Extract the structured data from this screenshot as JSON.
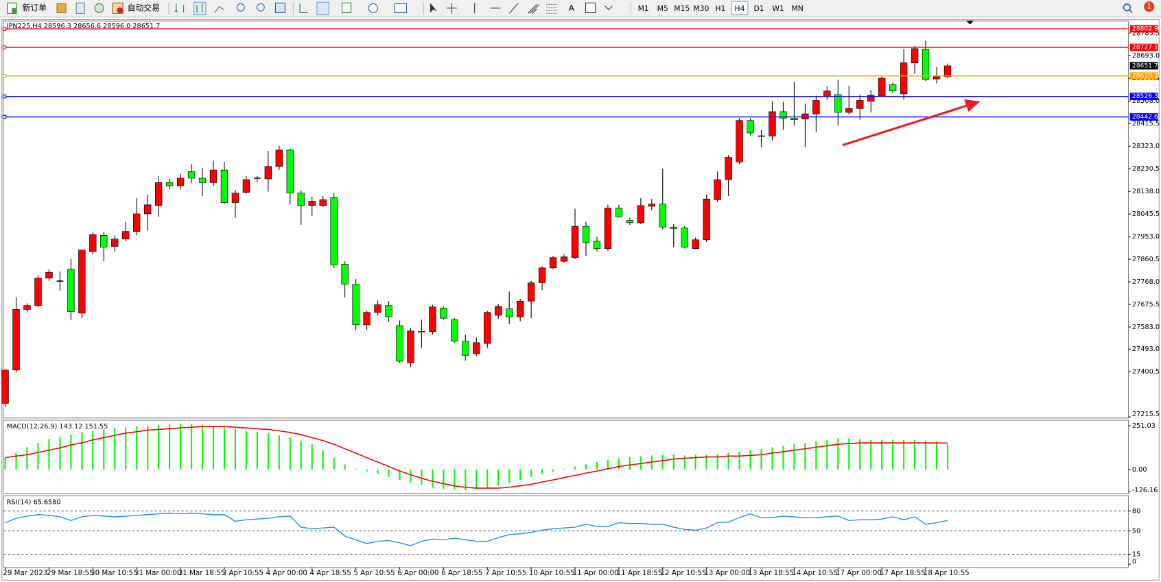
{
  "toolbar": {
    "new_order": "新订单",
    "auto_trading": "自动交易",
    "timeframes": [
      "M1",
      "M5",
      "M15",
      "M30",
      "H1",
      "H4",
      "D1",
      "W1",
      "MN"
    ],
    "active_timeframe": "H4",
    "notifications": 1
  },
  "chart_data": [
    {
      "type": "candlestick",
      "title": "JPN225,H4 28596.3 28656.6 28596.0 28651.7",
      "categories": [
        "29 Mar 2023",
        null,
        null,
        null,
        "29 Mar 18:55",
        null,
        null,
        null,
        "30 Mar 10:55",
        null,
        null,
        null,
        "31 Mar 00:00",
        null,
        null,
        null,
        "31 Mar 18:55",
        null,
        null,
        null,
        "3 Apr 10:55",
        null,
        null,
        null,
        "4 Apr 00:00",
        null,
        null,
        null,
        "4 Apr 18:55",
        null,
        null,
        null,
        "5 Apr 10:55",
        null,
        null,
        null,
        "6 Apr 00:00",
        null,
        null,
        null,
        "6 Apr 18:55",
        null,
        null,
        null,
        "7 Apr 10:55",
        null,
        null,
        null,
        "10 Apr 10:55",
        null,
        null,
        null,
        "11 Apr 00:00",
        null,
        null,
        null,
        "11 Apr 18:55",
        null,
        null,
        null,
        "12 Apr 10:55",
        null,
        null,
        null,
        "13 Apr 00:00",
        null,
        null,
        null,
        "13 Apr 18:55",
        null,
        null,
        null,
        "14 Apr 10:55",
        null,
        null,
        null,
        "17 Apr 00:00",
        null,
        null,
        null,
        "17 Apr 18:55",
        null,
        null,
        null,
        "18 Apr 10:55",
        null,
        null
      ],
      "open": [
        27271,
        27407,
        27655,
        27671,
        27783,
        27771,
        27819,
        27640,
        27892,
        27958,
        27913,
        27943,
        27974,
        28046,
        28080,
        28174,
        28161,
        28219,
        28192,
        28174,
        28225,
        28092,
        28134,
        28192,
        28189,
        28240,
        28307,
        28131,
        28080,
        28080,
        28113,
        27840,
        27758,
        27592,
        27643,
        27671,
        27589,
        27437,
        27564,
        27564,
        27661,
        27613,
        27525,
        27474,
        27516,
        27631,
        27658,
        27625,
        27689,
        27764,
        27825,
        27852,
        27867,
        27995,
        27934,
        27904,
        28070,
        28019,
        28010,
        28077,
        28086,
        27992,
        27989,
        27904,
        27940,
        28104,
        28186,
        28258,
        28428,
        28364,
        28364,
        28464,
        28437,
        28434,
        28455,
        28525,
        28534,
        28461,
        28477,
        28507,
        28528,
        28574,
        28537,
        28664,
        28719,
        28598,
        28607
      ],
      "high": [
        27407,
        27704,
        27680,
        27795,
        27819,
        27810,
        27861,
        27898,
        27968,
        27971,
        27958,
        28013,
        28110,
        28125,
        28201,
        28189,
        28210,
        28249,
        28234,
        28264,
        28258,
        28143,
        28201,
        28201,
        28304,
        28325,
        28313,
        28143,
        28116,
        28119,
        28131,
        27852,
        27780,
        27649,
        27692,
        27689,
        27610,
        27580,
        27613,
        27674,
        27667,
        27619,
        27552,
        27540,
        27649,
        27677,
        27728,
        27698,
        27771,
        27831,
        27874,
        27880,
        28067,
        28013,
        27952,
        28083,
        28083,
        28031,
        28110,
        28107,
        28231,
        28004,
        27995,
        27949,
        28125,
        28219,
        28286,
        28437,
        28437,
        28389,
        28507,
        28504,
        28586,
        28498,
        28528,
        28567,
        28595,
        28570,
        28534,
        28552,
        28607,
        28583,
        28719,
        28734,
        28755,
        28646,
        28661
      ],
      "low": [
        27255,
        27398,
        27643,
        27665,
        27771,
        27731,
        27613,
        27619,
        27880,
        27852,
        27892,
        27934,
        27958,
        27977,
        28034,
        28146,
        28146,
        28171,
        28119,
        28161,
        28086,
        28031,
        28128,
        28177,
        28137,
        28225,
        28086,
        28001,
        28037,
        28074,
        27825,
        27704,
        27570,
        27570,
        27631,
        27604,
        27437,
        27419,
        27498,
        27552,
        27613,
        27519,
        27446,
        27464,
        27498,
        27616,
        27595,
        27607,
        27619,
        27734,
        27819,
        27846,
        27861,
        27874,
        27892,
        27895,
        28031,
        28001,
        28004,
        28061,
        27983,
        27910,
        27904,
        27901,
        27931,
        28095,
        28119,
        28249,
        28367,
        28319,
        28346,
        28389,
        28407,
        28319,
        28380,
        28513,
        28407,
        28452,
        28431,
        28461,
        28528,
        28540,
        28513,
        28619,
        28589,
        28580,
        28601
      ],
      "close": [
        27407,
        27655,
        27671,
        27783,
        27807,
        27771,
        27646,
        27898,
        27961,
        27910,
        27943,
        27974,
        28046,
        28083,
        28174,
        28161,
        28192,
        28192,
        28174,
        28225,
        28092,
        28131,
        28186,
        28192,
        28240,
        28307,
        28131,
        28080,
        28098,
        28104,
        27837,
        27758,
        27592,
        27643,
        27674,
        27625,
        27443,
        27567,
        27564,
        27665,
        27619,
        27525,
        27467,
        27519,
        27643,
        27667,
        27625,
        27689,
        27764,
        27825,
        27867,
        27870,
        27995,
        27928,
        27904,
        28070,
        28034,
        28010,
        28080,
        28086,
        27992,
        27986,
        27910,
        27940,
        28107,
        28186,
        28277,
        28428,
        28377,
        28364,
        28464,
        28437,
        28431,
        28455,
        28510,
        28549,
        28461,
        28477,
        28510,
        28531,
        28601,
        28549,
        28664,
        28722,
        28595,
        28607,
        28651.7
      ],
      "up_color": "#ff0000",
      "down_color": "#00ff00",
      "wick_color": "#000000",
      "ylim": [
        27215.5,
        28830
      ],
      "yticks": [
        28785.5,
        {
          "value": 28693,
          "label": "28693.0"
        },
        28600.5,
        {
          "value": 28508,
          "label": "28508.0"
        },
        28415.5,
        {
          "value": 28323,
          "label": "28323.0"
        },
        28230.5,
        {
          "value": 28138,
          "label": "28138.0"
        },
        28045.5,
        {
          "value": 27953,
          "label": "27953.0"
        },
        27860.5,
        {
          "value": 27768,
          "label": "27768.0"
        },
        27675.5,
        {
          "value": 27583,
          "label": "27583.0"
        },
        {
          "value": 27493,
          "label": "27493.0"
        },
        27400.5,
        27215.5
      ],
      "hlines": [
        {
          "value": 28802.9,
          "color": "#ff0000"
        },
        {
          "value": 28727.1,
          "color": "#ff0000"
        },
        {
          "value": 28610.3,
          "color": "#ffa500"
        },
        {
          "value": 28526.3,
          "color": "#0000ff"
        },
        {
          "value": 28442.6,
          "color": "#0000ff"
        }
      ],
      "last_price": 28651.7
    },
    {
      "type": "macd",
      "title": "MACD(12,26,9) 143.12 151.55",
      "histogram": {
        "color": "#00ff00",
        "values": [
          68,
          94,
          128,
          153,
          175,
          187,
          200,
          213,
          222,
          230,
          239,
          243,
          247,
          251,
          256,
          260,
          264,
          260,
          256,
          251,
          243,
          234,
          222,
          217,
          209,
          196,
          187,
          166,
          145,
          111,
          68,
          30,
          4,
          -13,
          -26,
          -43,
          -60,
          -77,
          -89,
          -102,
          -111,
          -115,
          -119,
          -115,
          -107,
          -94,
          -77,
          -60,
          -43,
          -26,
          -13,
          4,
          17,
          30,
          43,
          55,
          64,
          72,
          77,
          81,
          85,
          85,
          81,
          85,
          85,
          89,
          94,
          102,
          111,
          119,
          128,
          136,
          145,
          153,
          162,
          170,
          179,
          179,
          175,
          170,
          170,
          170,
          170,
          170,
          166,
          160,
          143.12
        ]
      },
      "signal": {
        "color": "#ff0000",
        "values": [
          68,
          77,
          85,
          98,
          111,
          124,
          141,
          153,
          170,
          183,
          196,
          209,
          217,
          226,
          230,
          234,
          239,
          243,
          247,
          247,
          247,
          243,
          239,
          234,
          230,
          222,
          213,
          200,
          183,
          166,
          145,
          119,
          94,
          68,
          43,
          17,
          -9,
          -30,
          -51,
          -68,
          -81,
          -94,
          -102,
          -107,
          -107,
          -107,
          -102,
          -94,
          -85,
          -72,
          -60,
          -47,
          -34,
          -21,
          -9,
          4,
          17,
          26,
          34,
          43,
          51,
          60,
          64,
          68,
          72,
          72,
          77,
          77,
          81,
          85,
          94,
          102,
          111,
          119,
          128,
          136,
          145,
          149,
          153,
          153,
          153,
          153,
          153,
          153,
          153,
          153,
          151.55
        ]
      },
      "ylim": [
        -136,
        281
      ],
      "yticks": [
        251.03,
        {
          "value": 0,
          "label": "0.00"
        },
        -126.16
      ]
    },
    {
      "type": "line",
      "title": "RSI(14) 65.6580",
      "color": "#1e90ff",
      "values": [
        62.2,
        68.9,
        72.2,
        74.4,
        73.3,
        71.1,
        65.6,
        71.1,
        73.3,
        72.2,
        71.1,
        72.2,
        73.3,
        74.4,
        75.6,
        76.7,
        75.6,
        76.7,
        75.6,
        74.4,
        74.4,
        64.4,
        66.7,
        67.8,
        68.9,
        71.1,
        72.2,
        55.6,
        53.3,
        54.4,
        55.6,
        42.2,
        36.7,
        31.1,
        34.4,
        35.6,
        32.2,
        27.8,
        34.4,
        37.8,
        36.7,
        38.9,
        36.7,
        34.4,
        34.4,
        40.0,
        44.4,
        45.6,
        47.8,
        51.1,
        53.3,
        54.4,
        55.6,
        60.0,
        56.7,
        56.7,
        62.2,
        61.1,
        61.1,
        60.0,
        60.0,
        55.6,
        52.2,
        51.1,
        54.4,
        62.2,
        63.3,
        70.0,
        75.6,
        70.0,
        70.0,
        72.2,
        71.1,
        70.0,
        70.0,
        71.1,
        72.2,
        65.6,
        66.7,
        66.7,
        67.8,
        71.1,
        66.7,
        71.1,
        60.0,
        62.2,
        65.658
      ],
      "ylim": [
        0,
        100
      ],
      "yticks": [
        80,
        50,
        15,
        0
      ],
      "grid_style": "dashed"
    }
  ]
}
